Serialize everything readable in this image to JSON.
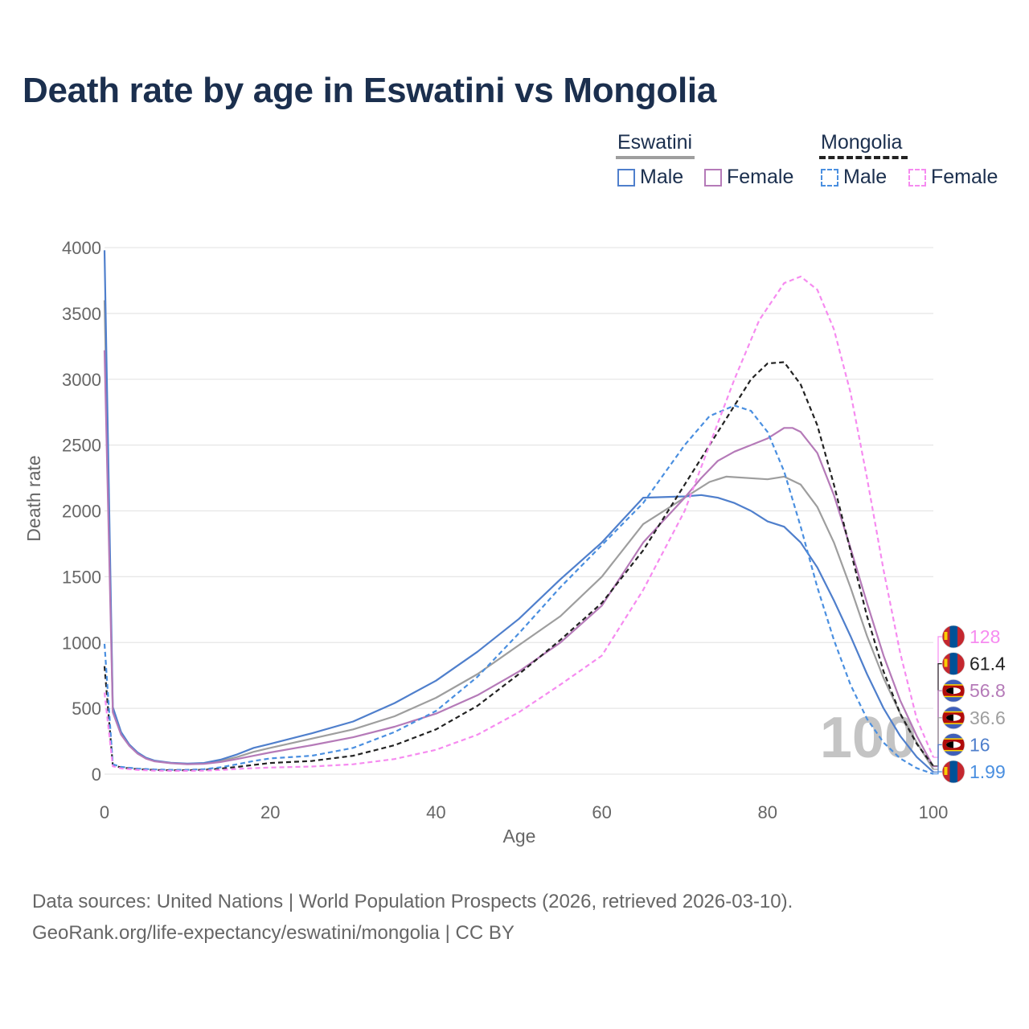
{
  "title": "Death rate by age in Eswatini vs Mongolia",
  "legend": {
    "groups": [
      {
        "name": "Eswatini",
        "line_color": "#9e9e9e",
        "line_style": "solid",
        "items": [
          {
            "label": "Male",
            "color": "#4f7fcc",
            "style": "solid"
          },
          {
            "label": "Female",
            "color": "#b57ab8",
            "style": "solid"
          }
        ]
      },
      {
        "name": "Mongolia",
        "line_color": "#222222",
        "line_style": "dashed",
        "items": [
          {
            "label": "Male",
            "color": "#4a8fe0",
            "style": "dashed"
          },
          {
            "label": "Female",
            "color": "#f68bf0",
            "style": "dashed"
          }
        ]
      }
    ]
  },
  "chart_data": {
    "type": "line",
    "title": "Death rate by age in Eswatini vs Mongolia",
    "xlabel": "Age",
    "ylabel": "Death rate",
    "xlim": [
      0,
      100
    ],
    "ylim": [
      0,
      4000
    ],
    "xticks": [
      0,
      20,
      40,
      60,
      80,
      100
    ],
    "yticks": [
      0,
      500,
      1000,
      1500,
      2000,
      2500,
      3000,
      3500,
      4000
    ],
    "year_watermark": "100",
    "series": [
      {
        "name": "Eswatini (total)",
        "color": "#9e9e9e",
        "dash": "solid",
        "points": [
          [
            0,
            3600
          ],
          [
            1,
            480
          ],
          [
            2,
            310
          ],
          [
            3,
            220
          ],
          [
            4,
            160
          ],
          [
            5,
            120
          ],
          [
            6,
            100
          ],
          [
            8,
            85
          ],
          [
            10,
            78
          ],
          [
            12,
            82
          ],
          [
            14,
            100
          ],
          [
            16,
            130
          ],
          [
            18,
            170
          ],
          [
            20,
            200
          ],
          [
            25,
            270
          ],
          [
            30,
            340
          ],
          [
            35,
            440
          ],
          [
            40,
            580
          ],
          [
            45,
            760
          ],
          [
            50,
            980
          ],
          [
            55,
            1200
          ],
          [
            60,
            1500
          ],
          [
            65,
            1900
          ],
          [
            70,
            2100
          ],
          [
            73,
            2220
          ],
          [
            75,
            2260
          ],
          [
            80,
            2240
          ],
          [
            82,
            2260
          ],
          [
            84,
            2200
          ],
          [
            86,
            2030
          ],
          [
            88,
            1760
          ],
          [
            90,
            1420
          ],
          [
            92,
            1050
          ],
          [
            94,
            730
          ],
          [
            96,
            460
          ],
          [
            98,
            240
          ],
          [
            100,
            36.6
          ]
        ]
      },
      {
        "name": "Eswatini Male",
        "color": "#4f7fcc",
        "dash": "solid",
        "points": [
          [
            0,
            3980
          ],
          [
            1,
            510
          ],
          [
            2,
            320
          ],
          [
            3,
            225
          ],
          [
            4,
            165
          ],
          [
            5,
            125
          ],
          [
            6,
            103
          ],
          [
            8,
            87
          ],
          [
            10,
            80
          ],
          [
            12,
            85
          ],
          [
            14,
            110
          ],
          [
            16,
            150
          ],
          [
            18,
            200
          ],
          [
            20,
            230
          ],
          [
            25,
            310
          ],
          [
            30,
            400
          ],
          [
            35,
            540
          ],
          [
            40,
            710
          ],
          [
            45,
            930
          ],
          [
            50,
            1180
          ],
          [
            55,
            1480
          ],
          [
            60,
            1760
          ],
          [
            65,
            2100
          ],
          [
            70,
            2110
          ],
          [
            72,
            2120
          ],
          [
            74,
            2100
          ],
          [
            76,
            2060
          ],
          [
            78,
            2000
          ],
          [
            80,
            1920
          ],
          [
            82,
            1880
          ],
          [
            84,
            1760
          ],
          [
            86,
            1570
          ],
          [
            88,
            1320
          ],
          [
            90,
            1050
          ],
          [
            92,
            760
          ],
          [
            94,
            500
          ],
          [
            96,
            290
          ],
          [
            98,
            130
          ],
          [
            100,
            16
          ]
        ]
      },
      {
        "name": "Eswatini Female",
        "color": "#b57ab8",
        "dash": "solid",
        "points": [
          [
            0,
            3220
          ],
          [
            1,
            470
          ],
          [
            2,
            300
          ],
          [
            3,
            215
          ],
          [
            4,
            155
          ],
          [
            5,
            118
          ],
          [
            6,
            98
          ],
          [
            8,
            83
          ],
          [
            10,
            76
          ],
          [
            12,
            78
          ],
          [
            14,
            92
          ],
          [
            16,
            115
          ],
          [
            18,
            140
          ],
          [
            20,
            165
          ],
          [
            25,
            220
          ],
          [
            30,
            280
          ],
          [
            35,
            360
          ],
          [
            40,
            460
          ],
          [
            45,
            600
          ],
          [
            50,
            780
          ],
          [
            55,
            1000
          ],
          [
            60,
            1280
          ],
          [
            65,
            1760
          ],
          [
            70,
            2100
          ],
          [
            72,
            2250
          ],
          [
            74,
            2380
          ],
          [
            76,
            2450
          ],
          [
            78,
            2500
          ],
          [
            80,
            2550
          ],
          [
            82,
            2630
          ],
          [
            83,
            2630
          ],
          [
            84,
            2600
          ],
          [
            86,
            2440
          ],
          [
            88,
            2120
          ],
          [
            90,
            1720
          ],
          [
            92,
            1300
          ],
          [
            94,
            900
          ],
          [
            96,
            560
          ],
          [
            98,
            290
          ],
          [
            100,
            56.8
          ]
        ]
      },
      {
        "name": "Mongolia (total)",
        "color": "#222222",
        "dash": "dashed",
        "points": [
          [
            0,
            820
          ],
          [
            1,
            70
          ],
          [
            2,
            50
          ],
          [
            4,
            38
          ],
          [
            6,
            32
          ],
          [
            8,
            30
          ],
          [
            10,
            30
          ],
          [
            12,
            33
          ],
          [
            14,
            42
          ],
          [
            16,
            55
          ],
          [
            18,
            70
          ],
          [
            20,
            85
          ],
          [
            25,
            100
          ],
          [
            30,
            140
          ],
          [
            35,
            220
          ],
          [
            40,
            340
          ],
          [
            45,
            520
          ],
          [
            50,
            760
          ],
          [
            55,
            1020
          ],
          [
            60,
            1300
          ],
          [
            65,
            1700
          ],
          [
            70,
            2200
          ],
          [
            75,
            2700
          ],
          [
            78,
            3000
          ],
          [
            80,
            3120
          ],
          [
            82,
            3130
          ],
          [
            84,
            2960
          ],
          [
            86,
            2650
          ],
          [
            88,
            2200
          ],
          [
            90,
            1700
          ],
          [
            92,
            1200
          ],
          [
            94,
            780
          ],
          [
            96,
            460
          ],
          [
            98,
            230
          ],
          [
            100,
            61.4
          ]
        ]
      },
      {
        "name": "Mongolia Male",
        "color": "#4a8fe0",
        "dash": "dashed",
        "points": [
          [
            0,
            990
          ],
          [
            1,
            75
          ],
          [
            2,
            55
          ],
          [
            4,
            42
          ],
          [
            6,
            36
          ],
          [
            8,
            33
          ],
          [
            10,
            33
          ],
          [
            12,
            38
          ],
          [
            14,
            52
          ],
          [
            16,
            75
          ],
          [
            18,
            100
          ],
          [
            20,
            120
          ],
          [
            25,
            140
          ],
          [
            30,
            200
          ],
          [
            35,
            320
          ],
          [
            40,
            480
          ],
          [
            45,
            740
          ],
          [
            50,
            1070
          ],
          [
            55,
            1420
          ],
          [
            60,
            1740
          ],
          [
            65,
            2060
          ],
          [
            70,
            2500
          ],
          [
            73,
            2720
          ],
          [
            76,
            2800
          ],
          [
            78,
            2760
          ],
          [
            80,
            2600
          ],
          [
            82,
            2300
          ],
          [
            84,
            1880
          ],
          [
            86,
            1420
          ],
          [
            88,
            1020
          ],
          [
            90,
            680
          ],
          [
            92,
            420
          ],
          [
            94,
            240
          ],
          [
            96,
            120
          ],
          [
            98,
            45
          ],
          [
            100,
            1.99
          ]
        ]
      },
      {
        "name": "Mongolia Female",
        "color": "#f68bf0",
        "dash": "dashed",
        "points": [
          [
            0,
            620
          ],
          [
            1,
            60
          ],
          [
            2,
            44
          ],
          [
            4,
            32
          ],
          [
            6,
            27
          ],
          [
            8,
            25
          ],
          [
            10,
            25
          ],
          [
            12,
            27
          ],
          [
            14,
            32
          ],
          [
            16,
            40
          ],
          [
            18,
            46
          ],
          [
            20,
            50
          ],
          [
            25,
            58
          ],
          [
            30,
            75
          ],
          [
            35,
            115
          ],
          [
            40,
            185
          ],
          [
            45,
            300
          ],
          [
            50,
            470
          ],
          [
            55,
            680
          ],
          [
            60,
            900
          ],
          [
            65,
            1400
          ],
          [
            70,
            2000
          ],
          [
            73,
            2500
          ],
          [
            76,
            3000
          ],
          [
            79,
            3450
          ],
          [
            82,
            3730
          ],
          [
            84,
            3780
          ],
          [
            86,
            3680
          ],
          [
            88,
            3380
          ],
          [
            90,
            2900
          ],
          [
            92,
            2250
          ],
          [
            94,
            1550
          ],
          [
            96,
            920
          ],
          [
            98,
            420
          ],
          [
            100,
            128
          ]
        ]
      }
    ],
    "end_labels": [
      {
        "value": "128",
        "color": "#f68bf0",
        "country": "Mongolia"
      },
      {
        "value": "61.4",
        "color": "#222222",
        "country": "Mongolia"
      },
      {
        "value": "56.8",
        "color": "#b57ab8",
        "country": "Eswatini"
      },
      {
        "value": "36.6",
        "color": "#9e9e9e",
        "country": "Eswatini"
      },
      {
        "value": "16",
        "color": "#4f7fcc",
        "country": "Eswatini"
      },
      {
        "value": "1.99",
        "color": "#4a8fe0",
        "country": "Mongolia"
      }
    ]
  },
  "footer": {
    "line1": "Data sources: United Nations | World Population Prospects (2026, retrieved 2026-03-10).",
    "line2": "GeoRank.org/life-expectancy/eswatini/mongolia | CC BY"
  }
}
